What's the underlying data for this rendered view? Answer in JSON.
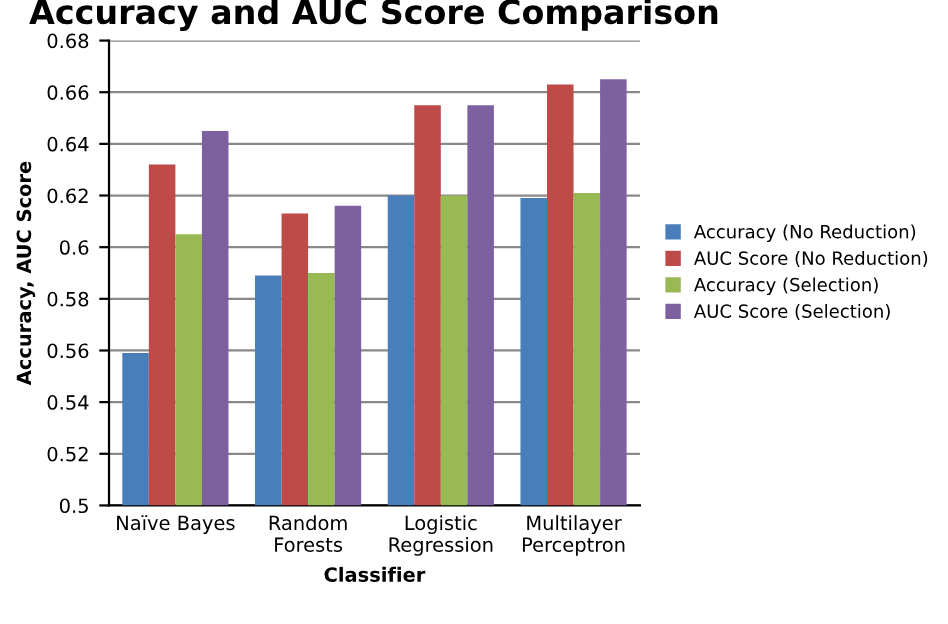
{
  "chart_data": {
    "type": "bar",
    "title": "Accuracy and AUC Score Comparison",
    "xlabel": "Classifier",
    "ylabel": "Accuracy, AUC Score",
    "categories": [
      "Naïve Bayes",
      "Random\nForests",
      "Logistic\nRegression",
      "Multilayer\nPerceptron"
    ],
    "series": [
      {
        "name": "Accuracy (No Reduction)",
        "color": "#4a7ebb",
        "values": [
          0.559,
          0.589,
          0.62,
          0.619
        ]
      },
      {
        "name": "AUC Score (No Reduction)",
        "color": "#be4b48",
        "values": [
          0.632,
          0.613,
          0.655,
          0.663
        ]
      },
      {
        "name": "Accuracy (Selection)",
        "color": "#98b954",
        "values": [
          0.605,
          0.59,
          0.62,
          0.621
        ]
      },
      {
        "name": "AUC Score (Selection)",
        "color": "#7d60a0",
        "values": [
          0.645,
          0.616,
          0.655,
          0.665
        ]
      }
    ],
    "ylim": [
      0.5,
      0.68
    ],
    "yticks": [
      0.5,
      0.52,
      0.54,
      0.56,
      0.58,
      0.6,
      0.62,
      0.64,
      0.66,
      0.68
    ],
    "grid": "y",
    "legend": "right"
  }
}
